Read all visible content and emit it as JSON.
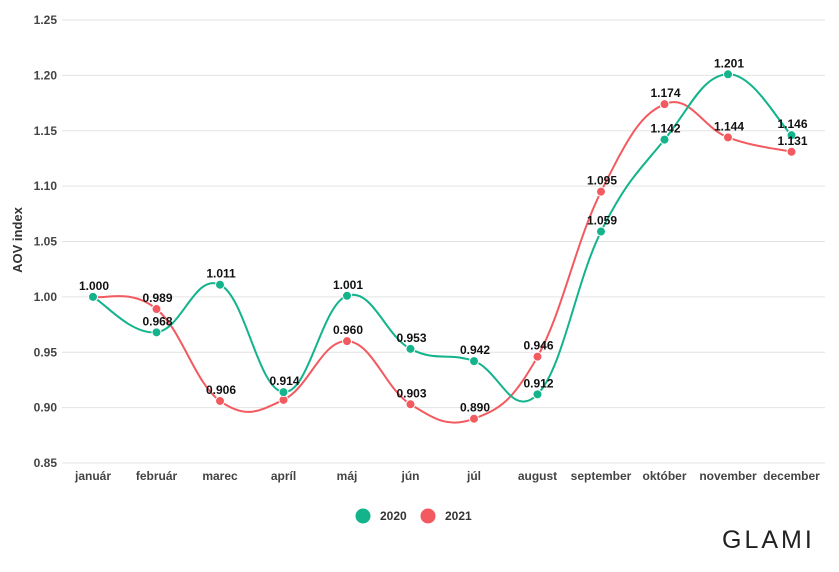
{
  "brand": "GLAMI",
  "chart_data": {
    "type": "line",
    "title": "",
    "xlabel": "",
    "ylabel": "AOV index",
    "categories": [
      "január",
      "február",
      "marec",
      "apríl",
      "máj",
      "jún",
      "júl",
      "august",
      "september",
      "október",
      "november",
      "december"
    ],
    "ylim": [
      0.85,
      1.25
    ],
    "yticks": [
      "0.85",
      "0.90",
      "0.95",
      "1.00",
      "1.05",
      "1.10",
      "1.15",
      "1.20",
      "1.25"
    ],
    "grid": true,
    "legend_position": "bottom",
    "series": [
      {
        "name": "2020",
        "color": "#13b38c",
        "values": [
          1.0,
          0.968,
          1.011,
          0.914,
          1.001,
          0.953,
          0.942,
          0.912,
          1.059,
          1.142,
          1.201,
          1.146
        ],
        "labels": [
          "",
          "0.968",
          "1.011",
          "0.914",
          "1.001",
          "0.953",
          "0.942",
          "0.912",
          "1.059",
          "1.142",
          "1.201",
          "1.146"
        ]
      },
      {
        "name": "2021",
        "color": "#f25a5f",
        "values": [
          1.0,
          0.989,
          0.906,
          0.907,
          0.96,
          0.903,
          0.89,
          0.946,
          1.095,
          1.174,
          1.144,
          1.131
        ],
        "labels": [
          "1.000",
          "0.989",
          "0.906",
          "",
          "0.960",
          "0.903",
          "0.890",
          "0.946",
          "1.095",
          "1.174",
          "1.144",
          "1.131"
        ]
      }
    ]
  }
}
